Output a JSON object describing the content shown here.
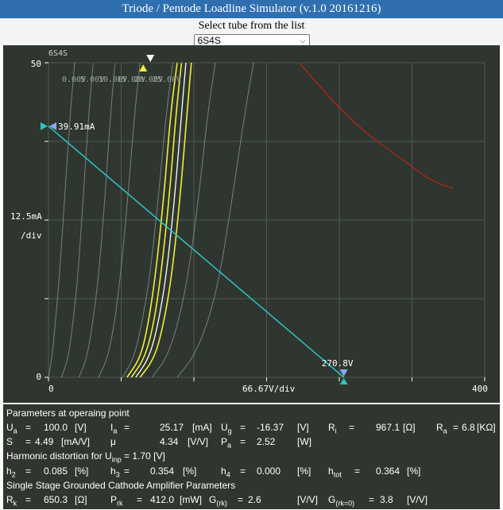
{
  "title": "Triode / Pentode Loadline Simulator (v.1.0 20161216)",
  "selector": {
    "label": "Select tube from the list",
    "selected": "6S4S",
    "chevron_icon": "chevron-down-icon"
  },
  "graph": {
    "tube_name": "6S4S",
    "y_top_label": "50",
    "y_mid_label": "12.5mA",
    "y_div_label": "/div",
    "y_zero_label": "0",
    "x_zero_label": "0",
    "x_mid_label": "66.67V/div",
    "x_max_label": "400",
    "current_label": "39.91mA",
    "voltage_label": "270.8V",
    "curve_labels": [
      "0.00V",
      "5.00V",
      "10.00V",
      "15.00V",
      "20.00V",
      "25.00V"
    ],
    "colors": {
      "background": "#2f362f",
      "grid": "#4e5a4e",
      "curve": "#8a9aa0",
      "highlight": "#f2ee3a",
      "operating": "#ffffff",
      "loadline": "#2fc4c4",
      "power_limit": "#a3261a"
    }
  },
  "chart_data": {
    "type": "line",
    "xlim": [
      0,
      400
    ],
    "ylim": [
      0,
      50
    ],
    "xlabel": "66.67V/div",
    "ylabel": "12.5mA /div",
    "loadline": {
      "points": [
        [
          0,
          39.91
        ],
        [
          270.8,
          0
        ]
      ]
    },
    "operating_point": {
      "x": 100.0,
      "y": 25.17
    },
    "series": [
      {
        "name": "0.00V",
        "values": [
          [
            0,
            0
          ],
          [
            3,
            3
          ],
          [
            6,
            8
          ],
          [
            10,
            16
          ],
          [
            15,
            29
          ],
          [
            20,
            42
          ],
          [
            24,
            50
          ]
        ]
      },
      {
        "name": "5.00V",
        "values": [
          [
            12,
            0
          ],
          [
            18,
            3
          ],
          [
            22,
            8
          ],
          [
            27,
            16
          ],
          [
            32,
            29
          ],
          [
            37,
            42
          ],
          [
            41,
            50
          ]
        ]
      },
      {
        "name": "10.00V",
        "values": [
          [
            28,
            0
          ],
          [
            35,
            3
          ],
          [
            40,
            8
          ],
          [
            46,
            16
          ],
          [
            52,
            29
          ],
          [
            57,
            42
          ],
          [
            61,
            50
          ]
        ]
      },
      {
        "name": "15.00V",
        "values": [
          [
            46,
            0
          ],
          [
            54,
            3
          ],
          [
            60,
            8
          ],
          [
            66,
            16
          ],
          [
            73,
            29
          ],
          [
            79,
            42
          ],
          [
            84,
            50
          ]
        ]
      },
      {
        "name": "20.00V",
        "values": [
          [
            68,
            0
          ],
          [
            78,
            3
          ],
          [
            85,
            8
          ],
          [
            93,
            16
          ],
          [
            101,
            29
          ],
          [
            108,
            42
          ],
          [
            114,
            50
          ]
        ]
      },
      {
        "name": "",
        "values": [
          [
            72,
            0
          ],
          [
            84,
            3
          ],
          [
            91,
            8
          ],
          [
            98,
            16
          ],
          [
            106,
            29
          ],
          [
            112,
            42
          ],
          [
            118,
            50
          ]
        ]
      },
      {
        "name": "",
        "values": [
          [
            76,
            0
          ],
          [
            88,
            3
          ],
          [
            96,
            8
          ],
          [
            103,
            16
          ],
          [
            111,
            29
          ],
          [
            117,
            42
          ],
          [
            122,
            50
          ]
        ]
      },
      {
        "name": "",
        "values": [
          [
            80,
            0
          ],
          [
            92,
            3
          ],
          [
            100,
            8
          ],
          [
            108,
            16
          ],
          [
            116,
            29
          ],
          [
            122,
            42
          ],
          [
            126,
            50
          ]
        ]
      },
      {
        "name": "",
        "values": [
          [
            84,
            0
          ],
          [
            97,
            3
          ],
          [
            105,
            8
          ],
          [
            113,
            16
          ],
          [
            121,
            29
          ],
          [
            127,
            42
          ],
          [
            131,
            50
          ]
        ]
      },
      {
        "name": "25.00V",
        "values": [
          [
            95,
            0
          ],
          [
            108,
            3
          ],
          [
            118,
            8
          ],
          [
            128,
            16
          ],
          [
            138,
            29
          ],
          [
            146,
            42
          ],
          [
            153,
            50
          ]
        ]
      },
      {
        "name": "",
        "values": [
          [
            118,
            0
          ],
          [
            132,
            3
          ],
          [
            145,
            8
          ],
          [
            157,
            16
          ],
          [
            169,
            29
          ],
          [
            180,
            42
          ],
          [
            188,
            50
          ]
        ]
      }
    ],
    "highlighted_series": [
      5,
      6,
      8
    ],
    "operating_series": 7,
    "power_limit": {
      "values": [
        [
          230,
          50
        ],
        [
          255,
          45
        ],
        [
          280,
          40.5
        ],
        [
          305,
          37
        ],
        [
          330,
          34
        ],
        [
          350,
          31.3
        ],
        [
          371,
          30
        ]
      ]
    }
  },
  "params": {
    "heading1": "Parameters at operaing point",
    "ua_label": "U",
    "ua_sub": "a",
    "ua_eq": "=",
    "ua_val": "100.0",
    "ua_unit": "[V]",
    "ia_label": "I",
    "ia_sub": "a",
    "ia_eq": "=",
    "ia_val": "25.17",
    "ia_unit": "[mA]",
    "ug_label": "U",
    "ug_sub": "g",
    "ug_eq": "=",
    "ug_val": "-16.37",
    "ug_unit": "[V]",
    "ri_label": "R",
    "ri_sub": "i",
    "ri_eq": "=",
    "ri_val": "967.1",
    "ri_unit": "[Ω]",
    "ra_label": "R",
    "ra_sub": "a",
    "ra_eq": "=",
    "ra_val": "6.8",
    "ra_unit": "[KΩ]",
    "s_label": "S",
    "s_eq": "=",
    "s_val": "4.49",
    "s_unit": "[mA/V]",
    "mu_label": "μ",
    "mu_val": "4.34",
    "mu_unit": "[V/V]",
    "pa_label": "P",
    "pa_sub": "a",
    "pa_eq": "=",
    "pa_val": "2.52",
    "pa_unit": "[W]",
    "heading2_pre": "Harmonic distortion for U",
    "heading2_sub": "inp",
    "heading2_post": "= 1.70 [V]",
    "h2_label": "h",
    "h2_sub": "2",
    "h2_eq": "=",
    "h2_val": "0.085",
    "h2_unit": "[%]",
    "h3_label": "h",
    "h3_sub": "3",
    "h3_eq": "=",
    "h3_val": "0.354",
    "h3_unit": "[%]",
    "h4_label": "h",
    "h4_sub": "4",
    "h4_eq": "=",
    "h4_val": "0.000",
    "h4_unit": "[%]",
    "htot_label": "h",
    "htot_sub": "tot",
    "htot_eq": "=",
    "htot_val": "0.364",
    "htot_unit": "[%]",
    "heading3": "Single Stage Grounded Cathode Amplifier Parameters",
    "rk_label": "R",
    "rk_sub": "k",
    "rk_eq": "=",
    "rk_val": "650.3",
    "rk_unit": "[Ω]",
    "prk_label": "P",
    "prk_sub": "rk",
    "prk_eq": "=",
    "prk_val": "412.0",
    "prk_unit": "[mW]",
    "grk_label": "G",
    "grk_sub": "(rk)",
    "grk_eq": "=",
    "grk_val": "2.6",
    "grk_unit": "[V/V]",
    "grk0_label": "G",
    "grk0_sub": "(rk=0)",
    "grk0_eq": "=",
    "grk0_val": "3.8",
    "grk0_unit": "[V/V]"
  }
}
